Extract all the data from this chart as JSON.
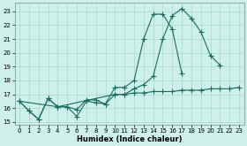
{
  "xlabel": "Humidex (Indice chaleur)",
  "background_color": "#cef0ea",
  "grid_color": "#aad8d2",
  "line_color": "#1a6b60",
  "xlim": [
    -0.5,
    23.5
  ],
  "ylim": [
    14.8,
    23.6
  ],
  "xticks": [
    0,
    1,
    2,
    3,
    4,
    5,
    6,
    7,
    8,
    9,
    10,
    11,
    12,
    13,
    14,
    15,
    16,
    17,
    18,
    19,
    20,
    21,
    22,
    23
  ],
  "yticks": [
    15,
    16,
    17,
    18,
    19,
    20,
    21,
    22,
    23
  ],
  "line1_x": [
    0,
    1,
    2,
    3,
    4,
    5,
    6,
    7,
    8,
    9,
    10,
    11,
    12,
    13,
    14,
    15,
    16,
    17
  ],
  "line1_y": [
    16.5,
    15.8,
    15.2,
    16.7,
    16.1,
    16.1,
    15.9,
    16.6,
    16.6,
    16.3,
    17.5,
    17.5,
    18.0,
    21.0,
    22.8,
    22.8,
    21.7,
    18.5
  ],
  "line2_x": [
    0,
    1,
    2,
    3,
    4,
    5,
    6,
    7,
    8,
    9,
    10,
    11,
    12,
    13,
    14,
    15,
    16,
    17,
    18,
    19,
    20,
    21
  ],
  "line2_y": [
    16.5,
    15.8,
    15.2,
    16.7,
    16.1,
    16.1,
    15.4,
    16.5,
    16.4,
    16.3,
    17.0,
    17.0,
    17.4,
    17.7,
    18.3,
    21.0,
    22.7,
    23.2,
    22.5,
    21.5,
    19.8,
    19.1
  ],
  "line3_x": [
    0,
    4,
    10,
    11,
    12,
    13,
    14,
    15,
    16,
    17,
    18,
    19,
    20,
    21,
    22,
    23
  ],
  "line3_y": [
    16.5,
    16.1,
    17.0,
    17.0,
    17.1,
    17.1,
    17.2,
    17.2,
    17.2,
    17.3,
    17.3,
    17.3,
    17.4,
    17.4,
    17.4,
    17.5
  ],
  "marker": "+",
  "marker_size": 4,
  "linewidth": 0.8,
  "tick_fontsize": 5,
  "xlabel_fontsize": 6
}
